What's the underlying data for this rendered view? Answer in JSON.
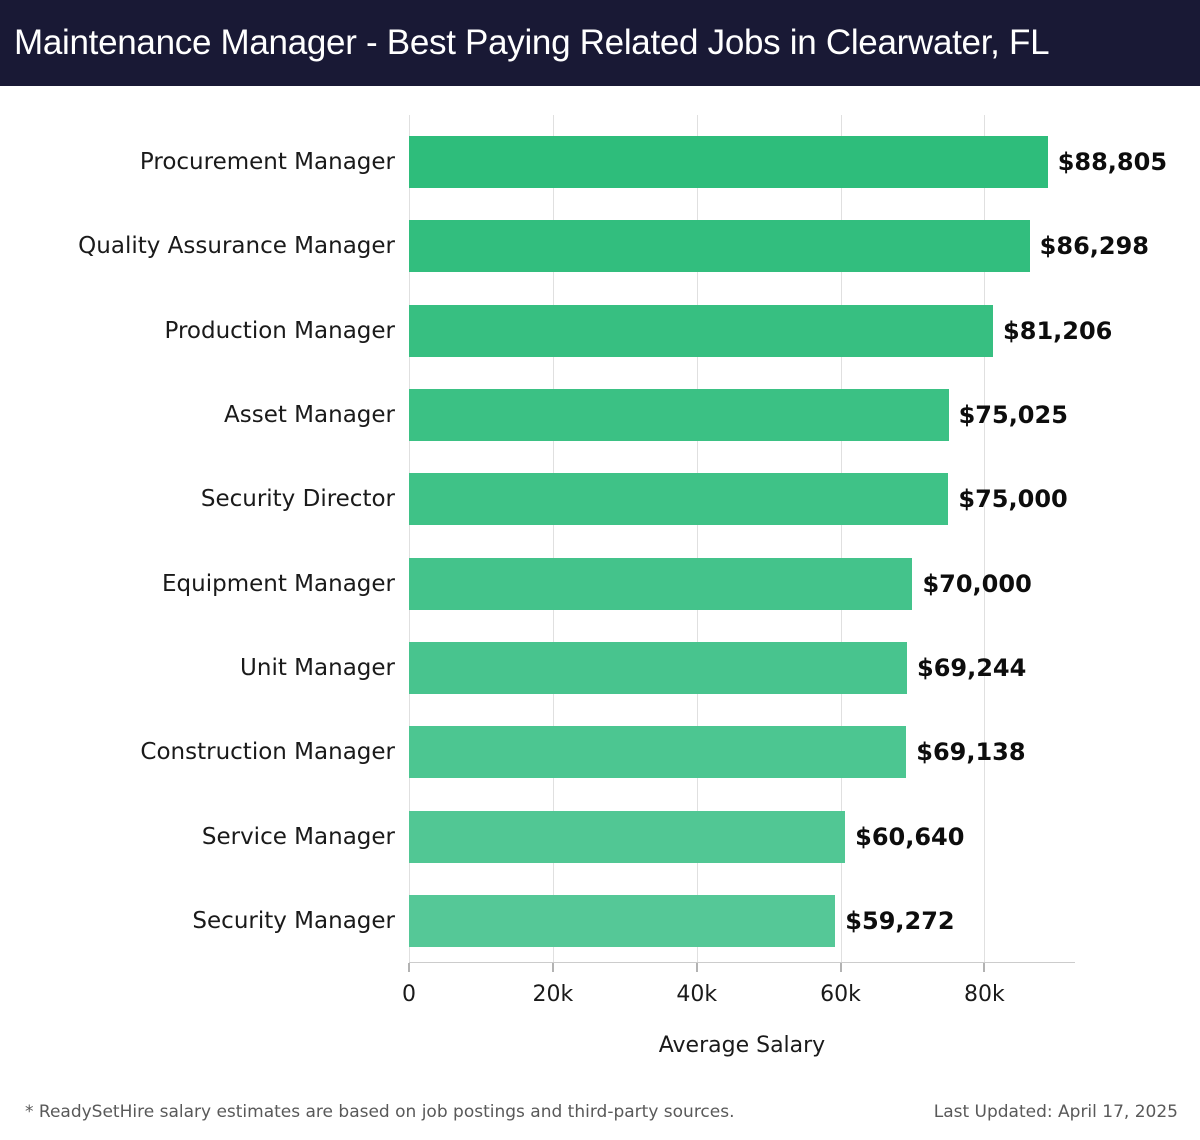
{
  "header": {
    "title": "Maintenance Manager - Best Paying Related Jobs in Clearwater, FL",
    "bg_color": "#191935",
    "text_color": "#ffffff"
  },
  "chart_data": {
    "type": "bar",
    "orientation": "horizontal",
    "title": "Maintenance Manager - Best Paying Related Jobs in Clearwater, FL",
    "categories": [
      "Procurement Manager",
      "Quality Assurance Manager",
      "Production Manager",
      "Asset Manager",
      "Security Director",
      "Equipment Manager",
      "Unit Manager",
      "Construction Manager",
      "Service Manager",
      "Security Manager"
    ],
    "values": [
      88805,
      86298,
      81206,
      75025,
      75000,
      70000,
      69244,
      69138,
      60640,
      59272
    ],
    "value_labels": [
      "$88,805",
      "$86,298",
      "$81,206",
      "$75,025",
      "$75,000",
      "$70,000",
      "$69,244",
      "$69,138",
      "$60,640",
      "$59,272"
    ],
    "xlabel": "Average Salary",
    "ylabel": "",
    "x_tick_labels": [
      "0",
      "20k",
      "40k",
      "60k",
      "80k"
    ],
    "x_tick_values": [
      0,
      20000,
      40000,
      60000,
      80000
    ],
    "xlim": [
      0,
      92600
    ],
    "grid": true,
    "legend": false,
    "bar_colors": [
      "#2ebd7b",
      "#32be7e",
      "#37bf81",
      "#3bc184",
      "#3fc287",
      "#44c38b",
      "#48c48e",
      "#4cc691",
      "#51c794",
      "#55c897"
    ],
    "gridline_color": "#e0e0e0",
    "axis_line_color": "#cccccc"
  },
  "footer": {
    "note": "* ReadySetHire salary estimates are based on job postings and third-party sources.",
    "last_updated": "Last Updated: April 17, 2025"
  }
}
